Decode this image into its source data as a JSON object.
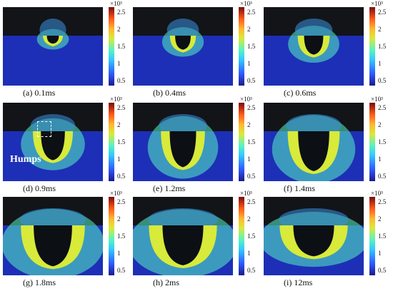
{
  "figure": {
    "panels": [
      {
        "id": "a",
        "caption": "(a)  0.1ms",
        "depth": 0.16,
        "width": 0.1
      },
      {
        "id": "b",
        "caption": "(b)  0.4ms",
        "depth": 0.28,
        "width": 0.13
      },
      {
        "id": "c",
        "caption": "(c)  0.6ms",
        "depth": 0.38,
        "width": 0.16
      },
      {
        "id": "d",
        "caption": "(d)  0.9ms",
        "depth": 0.58,
        "width": 0.2
      },
      {
        "id": "e",
        "caption": "(e)  1.2ms",
        "depth": 0.72,
        "width": 0.22
      },
      {
        "id": "f",
        "caption": "(f)  1.4ms",
        "depth": 0.8,
        "width": 0.26
      },
      {
        "id": "g",
        "caption": "(g)  1.8ms",
        "depth": 0.82,
        "width": 0.32
      },
      {
        "id": "h",
        "caption": "(h)  2ms",
        "depth": 0.8,
        "width": 0.34
      },
      {
        "id": "i",
        "caption": "(i)  12ms",
        "depth": 0.62,
        "width": 0.34
      }
    ],
    "colorbar": {
      "exponent": "×10³",
      "ticks": [
        "2.5",
        "2",
        "1.5",
        "1",
        "0.5"
      ]
    },
    "annotation": "Humps",
    "colors": {
      "background": "#121418",
      "metal": "#1d2fb6",
      "hot": "#d8ea3a",
      "glow": "#56f2c4"
    }
  }
}
